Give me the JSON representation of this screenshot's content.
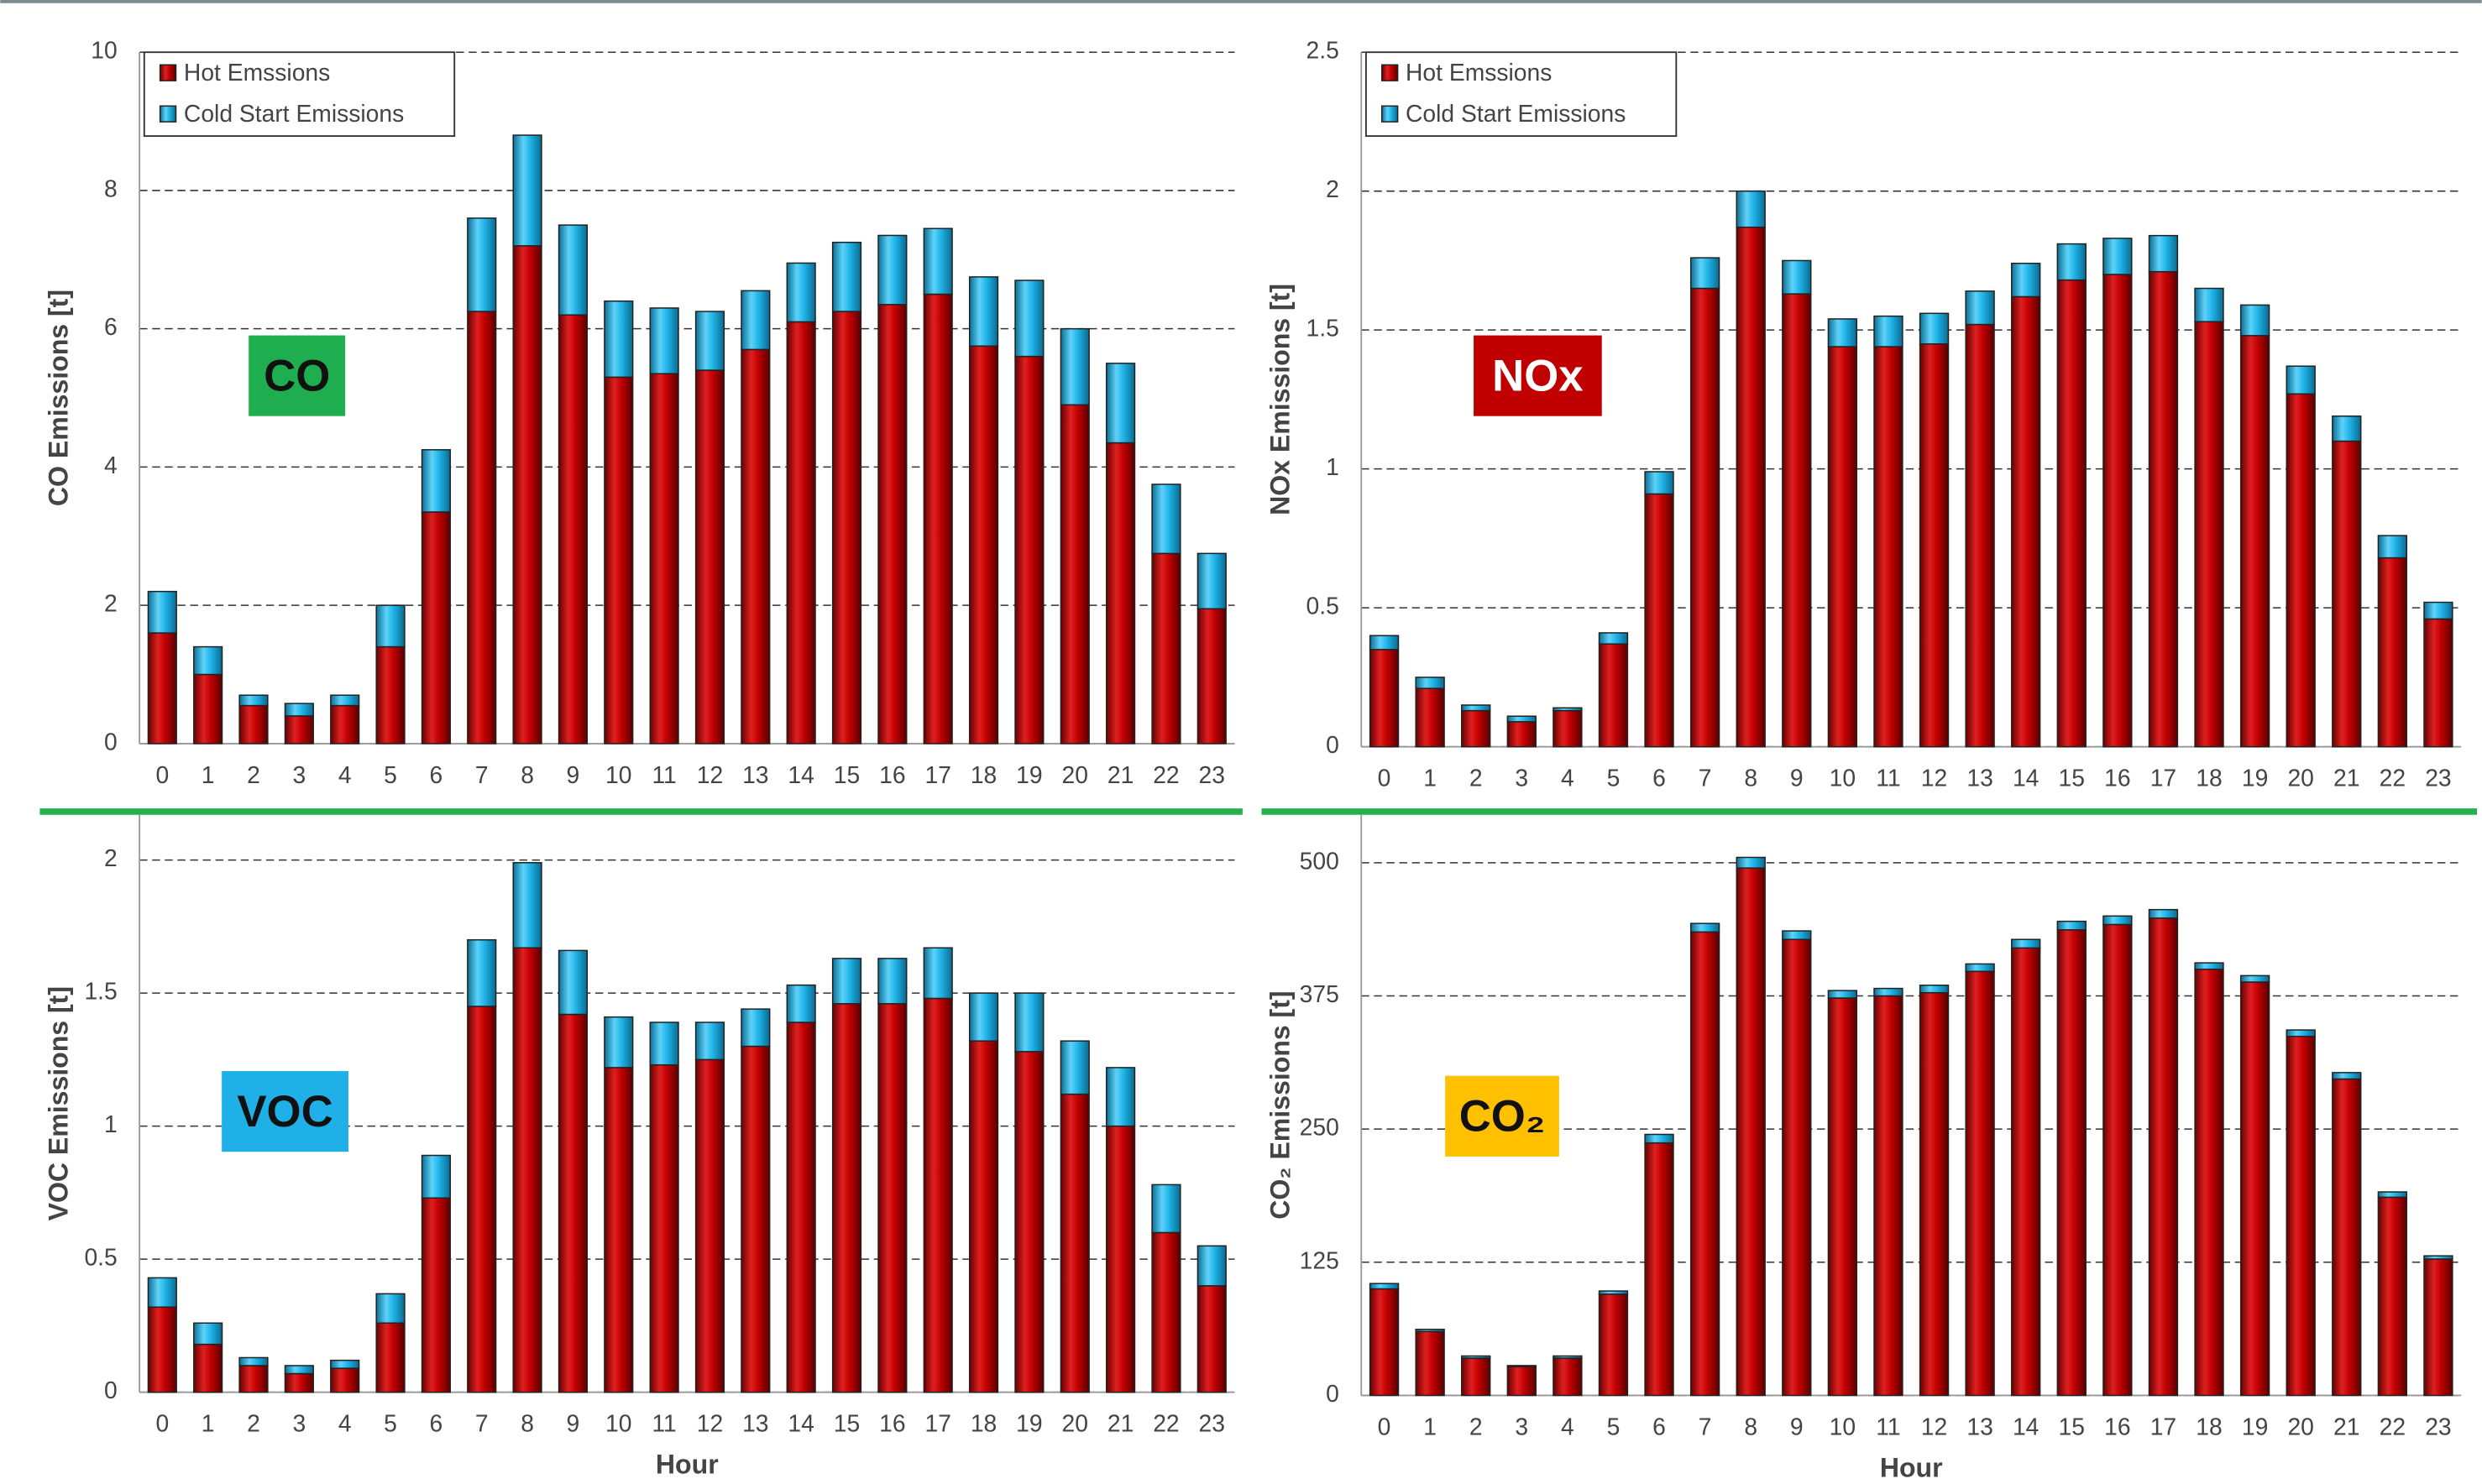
{
  "chart_data": [
    {
      "type": "bar",
      "stacked": true,
      "badge": "CO",
      "ylabel": "CO Emissions [t]",
      "categories": [
        "0",
        "1",
        "2",
        "3",
        "4",
        "5",
        "6",
        "7",
        "8",
        "9",
        "10",
        "11",
        "12",
        "13",
        "14",
        "15",
        "16",
        "17",
        "18",
        "19",
        "20",
        "21",
        "22",
        "23"
      ],
      "ylim": [
        0,
        10
      ],
      "yticks": [
        0,
        2,
        4,
        6,
        8,
        10
      ],
      "grid": true,
      "legend": "upper left",
      "series": [
        {
          "name": "Hot Emssions",
          "color": "#c00000",
          "values": [
            1.6,
            1.0,
            0.55,
            0.4,
            0.55,
            1.4,
            3.35,
            6.25,
            7.2,
            6.2,
            5.3,
            5.35,
            5.4,
            5.7,
            6.1,
            6.25,
            6.35,
            6.5,
            5.75,
            5.6,
            4.9,
            4.35,
            2.75,
            1.95
          ]
        },
        {
          "name": "Cold Start Emissions",
          "color": "#1fb4e8",
          "values": [
            0.6,
            0.4,
            0.15,
            0.18,
            0.15,
            0.6,
            0.9,
            1.35,
            1.6,
            1.3,
            1.1,
            0.95,
            0.85,
            0.85,
            0.85,
            1.0,
            1.0,
            0.95,
            1.0,
            1.1,
            1.1,
            1.15,
            1.0,
            0.8
          ]
        }
      ]
    },
    {
      "type": "bar",
      "stacked": true,
      "badge": "NOx",
      "ylabel": "NOx Emissions [t]",
      "categories": [
        "0",
        "1",
        "2",
        "3",
        "4",
        "5",
        "6",
        "7",
        "8",
        "9",
        "10",
        "11",
        "12",
        "13",
        "14",
        "15",
        "16",
        "17",
        "18",
        "19",
        "20",
        "21",
        "22",
        "23"
      ],
      "ylim": [
        0,
        2.5
      ],
      "yticks": [
        0,
        0.5,
        1,
        1.5,
        2,
        2.5
      ],
      "grid": true,
      "legend": "upper left",
      "series": [
        {
          "name": "Hot Emssions",
          "color": "#c00000",
          "values": [
            0.35,
            0.21,
            0.13,
            0.09,
            0.13,
            0.37,
            0.91,
            1.65,
            1.87,
            1.63,
            1.44,
            1.44,
            1.45,
            1.52,
            1.62,
            1.68,
            1.7,
            1.71,
            1.53,
            1.48,
            1.27,
            1.1,
            0.68,
            0.46
          ]
        },
        {
          "name": "Cold Start Emissions",
          "color": "#1fb4e8",
          "values": [
            0.05,
            0.04,
            0.02,
            0.02,
            0.01,
            0.04,
            0.08,
            0.11,
            0.13,
            0.12,
            0.1,
            0.11,
            0.11,
            0.12,
            0.12,
            0.13,
            0.13,
            0.13,
            0.12,
            0.11,
            0.1,
            0.09,
            0.08,
            0.06
          ]
        }
      ]
    },
    {
      "type": "bar",
      "stacked": true,
      "badge": "VOC",
      "ylabel": "VOC Emissions [t]",
      "xlabel": "Hour",
      "categories": [
        "0",
        "1",
        "2",
        "3",
        "4",
        "5",
        "6",
        "7",
        "8",
        "9",
        "10",
        "11",
        "12",
        "13",
        "14",
        "15",
        "16",
        "17",
        "18",
        "19",
        "20",
        "21",
        "22",
        "23"
      ],
      "ylim": [
        0,
        2.17
      ],
      "yticks": [
        0,
        0.5,
        1,
        1.5,
        2
      ],
      "grid": true,
      "series": [
        {
          "color": "#c00000",
          "values": [
            0.32,
            0.18,
            0.1,
            0.07,
            0.09,
            0.26,
            0.73,
            1.45,
            1.67,
            1.42,
            1.22,
            1.23,
            1.25,
            1.3,
            1.39,
            1.46,
            1.46,
            1.48,
            1.32,
            1.28,
            1.12,
            1.0,
            0.6,
            0.4
          ]
        },
        {
          "color": "#1fb4e8",
          "values": [
            0.11,
            0.08,
            0.03,
            0.03,
            0.03,
            0.11,
            0.16,
            0.25,
            0.32,
            0.24,
            0.19,
            0.16,
            0.14,
            0.14,
            0.14,
            0.17,
            0.17,
            0.19,
            0.18,
            0.22,
            0.2,
            0.22,
            0.18,
            0.15
          ]
        }
      ]
    },
    {
      "type": "bar",
      "stacked": true,
      "badge": "CO₂",
      "ylabel": "CO₂ Emissions [t]",
      "xlabel": "Hour",
      "categories": [
        "0",
        "1",
        "2",
        "3",
        "4",
        "5",
        "6",
        "7",
        "8",
        "9",
        "10",
        "11",
        "12",
        "13",
        "14",
        "15",
        "16",
        "17",
        "18",
        "19",
        "20",
        "21",
        "22",
        "23"
      ],
      "ylim": [
        0,
        545
      ],
      "yticks": [
        0,
        125,
        250,
        375,
        500
      ],
      "grid": true,
      "series": [
        {
          "color": "#c00000",
          "values": [
            100,
            60,
            35,
            27,
            35,
            95,
            237,
            435,
            495,
            428,
            373,
            375,
            378,
            398,
            420,
            437,
            442,
            448,
            400,
            388,
            337,
            297,
            186,
            128
          ]
        },
        {
          "color": "#1fb4e8",
          "values": [
            5,
            2,
            2,
            1,
            2,
            3,
            8,
            8,
            10,
            8,
            7,
            7,
            7,
            7,
            8,
            8,
            8,
            8,
            6,
            6,
            6,
            6,
            5,
            3
          ]
        }
      ]
    }
  ]
}
